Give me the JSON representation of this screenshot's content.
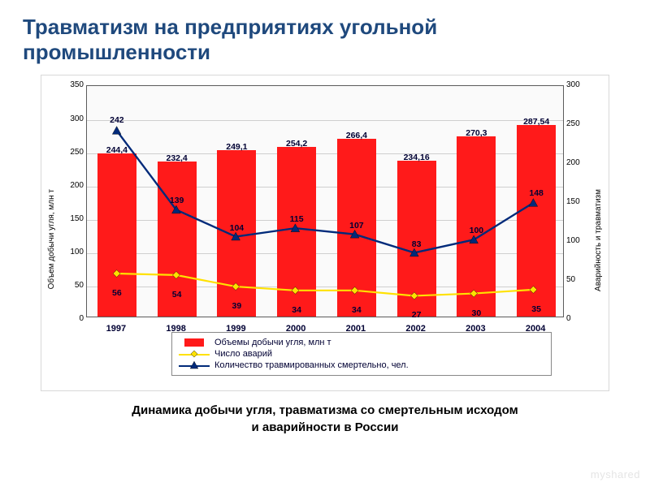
{
  "title": "Травматизм на предприятиях угольной промышленности",
  "caption_line1": "Динамика добычи угля, травматизма со смертельным исходом",
  "caption_line2": "и аварийности в России",
  "watermark": "myshared",
  "chart": {
    "type": "bar+line",
    "background_color": "#fafafa",
    "border_color": "#5b5b5b",
    "grid_color": "#cfcfcf",
    "categories": [
      "1997",
      "1998",
      "1999",
      "2000",
      "2001",
      "2002",
      "2003",
      "2004"
    ],
    "left_axis": {
      "label": "Объем добычи угля, млн т",
      "min": 0,
      "max": 350,
      "step": 50
    },
    "right_axis": {
      "label": "Аварийность и травматизм",
      "min": 0,
      "max": 300,
      "step": 50
    },
    "bars": {
      "label": "Объемы добычи угля, млн т",
      "values": [
        244.4,
        232.4,
        249.1,
        254.2,
        266.4,
        234.16,
        270.3,
        287.54
      ],
      "labels": [
        "244,4",
        "232,4",
        "249,1",
        "254,2",
        "266,4",
        "234,16",
        "270,3",
        "287,54"
      ],
      "color": "#ff1a1a",
      "axis": "left",
      "width_frac": 0.65
    },
    "lines": [
      {
        "label": "Число аварий",
        "values": [
          56,
          54,
          39,
          34,
          34,
          27,
          30,
          35
        ],
        "labels": [
          "56",
          "54",
          "39",
          "34",
          "34",
          "27",
          "30",
          "35"
        ],
        "color": "#ffe100",
        "marker": "diamond",
        "marker_size": 8,
        "line_width": 2.2,
        "axis": "right",
        "label_offset_y": 14
      },
      {
        "label": "Количество травмированных смертельно, чел.",
        "values": [
          242,
          139,
          104,
          115,
          107,
          83,
          100,
          148
        ],
        "labels": [
          "242",
          "139",
          "104",
          "115",
          "107",
          "83",
          "100",
          "148"
        ],
        "color": "#002a7a",
        "marker": "triangle",
        "marker_size": 9,
        "line_width": 2.4,
        "axis": "right",
        "label_offset_y": -8
      }
    ],
    "label_fontsize": 10.5,
    "label_color": "#000033",
    "x_label_fontsize": 11
  }
}
